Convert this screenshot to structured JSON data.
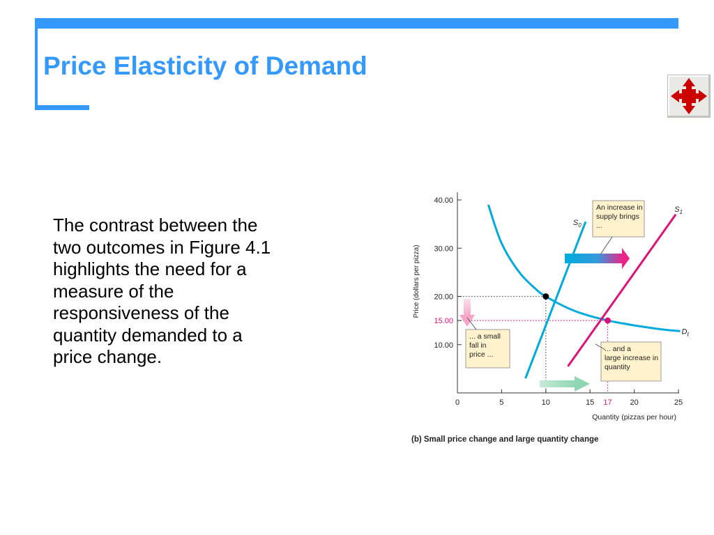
{
  "slide": {
    "title": "Price Elasticity of Demand",
    "body": "The contrast between the\ntwo outcomes in Figure 4.1\nhighlights the need for a\nmeasure of the\nresponsiveness of the\nquantity demanded to a\nprice change.",
    "nav_icon": "four-way-arrow-icon"
  },
  "colors": {
    "frame": "#3399ff",
    "title": "#3399ff",
    "demand": "#00aadd",
    "supply_initial": "#00aadd",
    "supply_new": "#dd1177",
    "highlight_price": "#dd1177",
    "callout_fill": "#fff2cc",
    "nav_arrow": "#cc0000"
  },
  "chart_data": {
    "type": "line",
    "caption": "(b) Small price change and large quantity change",
    "xlabel": "Quantity (pizzas per hour)",
    "ylabel": "Price (dollars per pizza)",
    "xlim": [
      0,
      25
    ],
    "ylim": [
      0,
      40
    ],
    "x_ticks": [
      {
        "value": 0,
        "label": "0"
      },
      {
        "value": 5,
        "label": "5"
      },
      {
        "value": 10,
        "label": "10"
      },
      {
        "value": 15,
        "label": "15"
      },
      {
        "value": 17,
        "label": "17",
        "highlight": true
      },
      {
        "value": 20,
        "label": "20"
      },
      {
        "value": 25,
        "label": "25"
      }
    ],
    "y_ticks": [
      {
        "value": 10,
        "label": "10.00"
      },
      {
        "value": 15,
        "label": "15.00",
        "highlight": true
      },
      {
        "value": 20,
        "label": "20.00"
      },
      {
        "value": 30,
        "label": "30.00"
      },
      {
        "value": 40,
        "label": "40.00"
      }
    ],
    "series": [
      {
        "name": "D",
        "subscript": "b",
        "kind": "demand",
        "x": [
          3.5,
          5,
          7,
          9,
          10,
          12,
          14,
          17,
          20,
          23,
          25.2
        ],
        "y": [
          39,
          31,
          25,
          21.3,
          20,
          18,
          16.5,
          15,
          14,
          13.2,
          12.8
        ]
      },
      {
        "name": "S",
        "subscript": "0",
        "kind": "supply-initial",
        "x": [
          7.7,
          14.5
        ],
        "y": [
          3,
          35.5
        ]
      },
      {
        "name": "S",
        "subscript": "1",
        "kind": "supply-new",
        "x": [
          12.5,
          24.7
        ],
        "y": [
          5.5,
          37
        ]
      }
    ],
    "equilibria": [
      {
        "x": 10,
        "y": 20,
        "color": "#000000"
      },
      {
        "x": 17,
        "y": 15,
        "color": "#dd1177"
      }
    ],
    "annotations": [
      "An increase in supply brings ...",
      "... a small fall in price ...",
      "... and a large increase in quantity"
    ]
  }
}
